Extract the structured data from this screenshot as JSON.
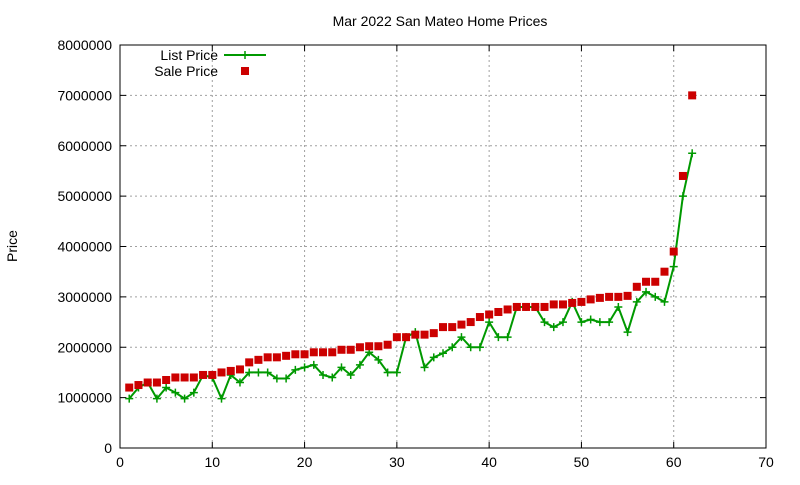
{
  "chart_data": {
    "type": "line",
    "title": "Mar 2022 San Mateo Home Prices",
    "xlabel": "",
    "ylabel": "Price",
    "xlim": [
      0,
      70
    ],
    "ylim": [
      0,
      8000000
    ],
    "xticks": [
      0,
      10,
      20,
      30,
      40,
      50,
      60,
      70
    ],
    "yticks": [
      0,
      1000000,
      2000000,
      3000000,
      4000000,
      5000000,
      6000000,
      7000000,
      8000000
    ],
    "grid": true,
    "legend_position": "top-left",
    "x": [
      1,
      2,
      3,
      4,
      5,
      6,
      7,
      8,
      9,
      10,
      11,
      12,
      13,
      14,
      15,
      16,
      17,
      18,
      19,
      20,
      21,
      22,
      23,
      24,
      25,
      26,
      27,
      28,
      29,
      30,
      31,
      32,
      33,
      34,
      35,
      36,
      37,
      38,
      39,
      40,
      41,
      42,
      43,
      44,
      45,
      46,
      47,
      48,
      49,
      50,
      51,
      52,
      53,
      54,
      55,
      56,
      57,
      58,
      59,
      60,
      61,
      62
    ],
    "series": [
      {
        "name": "List Price",
        "kind": "line+plus",
        "color": "#009900",
        "values": [
          980000,
          1200000,
          1300000,
          980000,
          1200000,
          1100000,
          980000,
          1100000,
          1450000,
          1400000,
          980000,
          1450000,
          1300000,
          1500000,
          1500000,
          1500000,
          1380000,
          1380000,
          1550000,
          1600000,
          1650000,
          1450000,
          1400000,
          1600000,
          1450000,
          1650000,
          1900000,
          1750000,
          1500000,
          1500000,
          2200000,
          2300000,
          1600000,
          1800000,
          1880000,
          2000000,
          2200000,
          2000000,
          2000000,
          2500000,
          2200000,
          2200000,
          2800000,
          2800000,
          2800000,
          2500000,
          2400000,
          2500000,
          2900000,
          2500000,
          2550000,
          2500000,
          2500000,
          2800000,
          2300000,
          2900000,
          3100000,
          3000000,
          2900000,
          3600000,
          5000000,
          5850000
        ]
      },
      {
        "name": "Sale Price",
        "kind": "scatter-square",
        "color": "#cc0000",
        "values": [
          1200000,
          1250000,
          1300000,
          1300000,
          1350000,
          1400000,
          1400000,
          1400000,
          1450000,
          1450000,
          1500000,
          1530000,
          1560000,
          1700000,
          1750000,
          1800000,
          1800000,
          1830000,
          1860000,
          1860000,
          1900000,
          1900000,
          1900000,
          1950000,
          1950000,
          2000000,
          2020000,
          2020000,
          2050000,
          2200000,
          2200000,
          2250000,
          2250000,
          2280000,
          2400000,
          2400000,
          2450000,
          2500000,
          2600000,
          2650000,
          2700000,
          2750000,
          2800000,
          2800000,
          2800000,
          2800000,
          2850000,
          2850000,
          2880000,
          2900000,
          2950000,
          2980000,
          3000000,
          3000000,
          3020000,
          3200000,
          3300000,
          3300000,
          3500000,
          3900000,
          5400000,
          7000000
        ]
      }
    ]
  }
}
